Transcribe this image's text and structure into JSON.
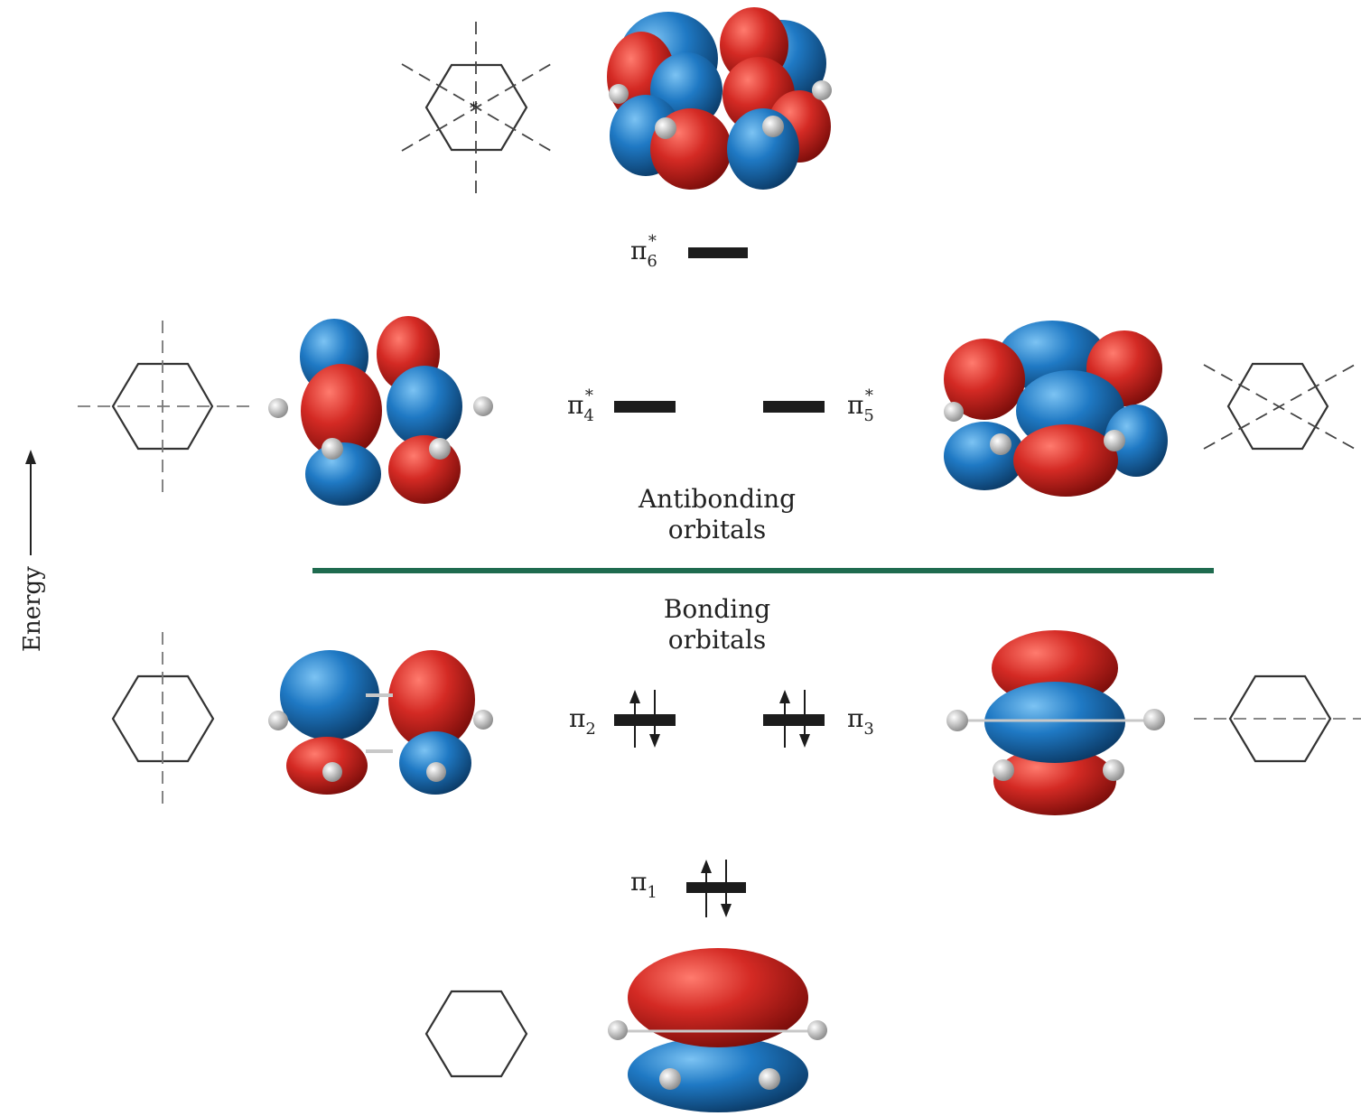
{
  "energy_axis": {
    "label": "Energy"
  },
  "divider": {
    "color": "#1f6b4f",
    "above": [
      "Antibonding",
      "orbitals"
    ],
    "below": [
      "Bonding",
      "orbitals"
    ]
  },
  "orbitals": [
    {
      "id": "pi6",
      "symbol": "π",
      "subscript": "6",
      "star": "*",
      "occupied": false,
      "nodal_planes": 3
    },
    {
      "id": "pi4",
      "symbol": "π",
      "subscript": "4",
      "star": "*",
      "occupied": false,
      "nodal_planes": 2
    },
    {
      "id": "pi5",
      "symbol": "π",
      "subscript": "5",
      "star": "*",
      "occupied": false,
      "nodal_planes": 2
    },
    {
      "id": "pi2",
      "symbol": "π",
      "subscript": "2",
      "star": "",
      "occupied": true,
      "nodal_planes": 1
    },
    {
      "id": "pi3",
      "symbol": "π",
      "subscript": "3",
      "star": "",
      "occupied": true,
      "nodal_planes": 1
    },
    {
      "id": "pi1",
      "symbol": "π",
      "subscript": "1",
      "star": "",
      "occupied": true,
      "nodal_planes": 0
    }
  ],
  "lobe_colors": {
    "red": "#d42a24",
    "blue": "#1f79c4",
    "hydrogen": "#c8c8c8"
  }
}
